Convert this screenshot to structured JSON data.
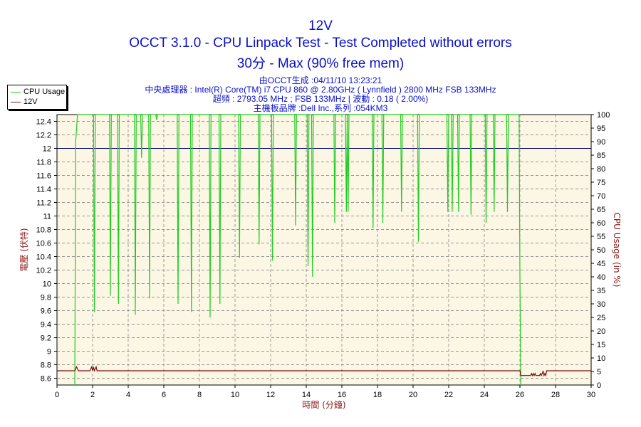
{
  "header": {
    "title": "12V",
    "subtitle": "OCCT 3.1.0 - CPU Linpack Test - Test Completed without errors",
    "subtitle2": "30分 - Max (90% free mem)",
    "info": [
      "由OCCT生成 :04/11/10 13:23:21",
      "中央處理器 : Intel(R) Core(TM) i7 CPU 860 @ 2.80GHz ( Lynnfield ) 2800 MHz FSB 133MHz",
      "超頻 : 2793.05 MHz ; FSB 133MHz | 波動 : 0.18 ( 2.00%)",
      "主機板品牌 :Dell Inc.,系列 :054KM3"
    ]
  },
  "colors": {
    "cpu": "#22cc22",
    "v12": "#7a1010",
    "plot_bg": "#fbf7e4",
    "title": "#0a10c8",
    "axis_label": "#8b1a1a"
  },
  "chart_data": {
    "type": "line",
    "title": "12V",
    "xlabel": "時間 (分鐘)",
    "ylabel": "電壓 (伏特)",
    "y2label": "CPU Usage (in %)",
    "xlim": [
      0,
      30
    ],
    "ylim": [
      8.5,
      12.5
    ],
    "y2lim": [
      0,
      100
    ],
    "xticks": [
      0,
      2,
      4,
      6,
      8,
      10,
      12,
      14,
      16,
      18,
      20,
      22,
      24,
      26,
      28,
      30
    ],
    "yticks": [
      8.6,
      8.8,
      9,
      9.2,
      9.4,
      9.6,
      9.8,
      10,
      10.2,
      10.4,
      10.6,
      10.8,
      11,
      11.2,
      11.4,
      11.6,
      11.8,
      12,
      12.2,
      12.4
    ],
    "y2ticks": [
      0,
      5,
      10,
      15,
      20,
      25,
      30,
      35,
      40,
      45,
      50,
      55,
      60,
      65,
      70,
      75,
      80,
      85,
      90,
      95,
      100
    ],
    "legend_position": "top-left",
    "grid": true,
    "series": [
      {
        "name": "CPU Usage",
        "axis": "right",
        "x": [
          0,
          1.0,
          1.05,
          1.15,
          1.2,
          2.05,
          2.1,
          2.15,
          2.2,
          2.95,
          3.0,
          3.05,
          3.4,
          3.45,
          3.5,
          4.35,
          4.4,
          4.45,
          4.7,
          4.75,
          4.8,
          5.15,
          5.2,
          5.25,
          5.55,
          5.6,
          5.65,
          6.75,
          6.8,
          6.85,
          7.5,
          7.55,
          7.6,
          8.55,
          8.6,
          8.65,
          9.1,
          9.15,
          9.2,
          10.2,
          10.25,
          10.3,
          11.3,
          11.35,
          11.4,
          12.05,
          12.1,
          12.15,
          13.35,
          13.4,
          13.45,
          14.05,
          14.1,
          14.15,
          14.3,
          14.35,
          14.4,
          15.55,
          15.6,
          15.65,
          16.2,
          16.25,
          16.3,
          16.35,
          16.4,
          17.7,
          17.75,
          17.8,
          18.25,
          18.3,
          18.35,
          19.3,
          19.35,
          19.4,
          20.25,
          20.3,
          20.35,
          21.9,
          21.95,
          22.0,
          22.15,
          22.2,
          22.25,
          22.5,
          22.55,
          22.6,
          23.2,
          23.25,
          23.3,
          24.05,
          24.1,
          24.15,
          24.5,
          24.55,
          24.6,
          25.25,
          25.3,
          25.35,
          25.95,
          26.0,
          26.05,
          30
        ],
        "y": [
          null,
          0,
          90,
          100,
          100,
          100,
          27,
          100,
          100,
          100,
          33,
          100,
          100,
          30,
          100,
          100,
          26,
          100,
          100,
          84,
          100,
          100,
          32,
          100,
          100,
          98,
          100,
          100,
          30,
          100,
          100,
          27,
          100,
          100,
          25,
          100,
          100,
          30,
          100,
          100,
          47,
          100,
          100,
          52,
          100,
          100,
          46,
          100,
          100,
          59,
          100,
          100,
          44,
          100,
          100,
          40,
          100,
          100,
          60,
          100,
          100,
          64,
          100,
          64,
          100,
          100,
          58,
          100,
          100,
          60,
          100,
          100,
          64,
          100,
          100,
          53,
          100,
          100,
          64,
          100,
          100,
          64,
          100,
          100,
          64,
          100,
          100,
          63,
          100,
          100,
          60,
          100,
          100,
          64,
          100,
          100,
          64,
          100,
          100,
          40,
          0,
          null
        ]
      },
      {
        "name": "12V",
        "axis": "left",
        "x": [
          0,
          1.0,
          1.05,
          1.1,
          1.15,
          1.2,
          1.25,
          1.85,
          1.9,
          1.95,
          2.0,
          2.05,
          2.1,
          2.15,
          2.2,
          2.25,
          2.3,
          2.35,
          26.0,
          26.05,
          26.6,
          26.65,
          26.7,
          26.75,
          26.8,
          26.85,
          26.9,
          27.1,
          27.15,
          27.2,
          27.25,
          27.3,
          27.35,
          27.4,
          27.45,
          27.5,
          27.55,
          30
        ],
        "y": [
          8.71,
          8.71,
          8.74,
          8.77,
          8.74,
          8.71,
          8.71,
          8.71,
          8.74,
          8.77,
          8.71,
          8.77,
          8.71,
          8.74,
          8.77,
          8.71,
          8.71,
          8.71,
          8.71,
          8.64,
          8.64,
          8.67,
          8.64,
          8.67,
          8.64,
          8.67,
          8.64,
          8.64,
          8.67,
          8.64,
          8.67,
          8.71,
          8.64,
          8.67,
          8.64,
          8.71,
          8.71,
          8.71
        ]
      }
    ]
  }
}
